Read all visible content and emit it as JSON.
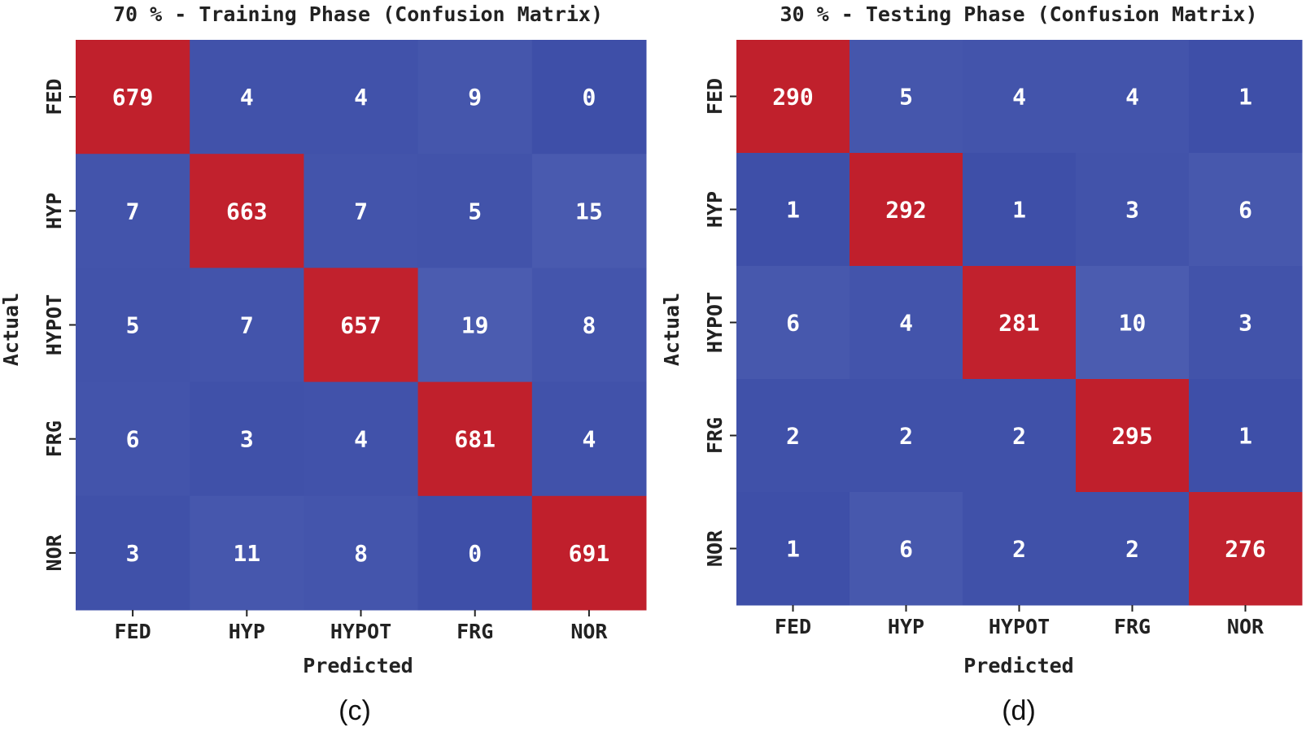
{
  "chart_data": [
    {
      "type": "heatmap",
      "title": "70 % - Training Phase (Confusion Matrix)",
      "xlabel": "Predicted",
      "ylabel": "Actual",
      "x_categories": [
        "FED",
        "HYP",
        "HYPOT",
        "FRG",
        "NOR"
      ],
      "y_categories": [
        "FED",
        "HYP",
        "HYPOT",
        "FRG",
        "NOR"
      ],
      "matrix": [
        [
          679,
          4,
          4,
          9,
          0
        ],
        [
          7,
          663,
          7,
          5,
          15
        ],
        [
          5,
          7,
          657,
          19,
          8
        ],
        [
          6,
          3,
          4,
          681,
          4
        ],
        [
          3,
          11,
          8,
          0,
          691
        ]
      ],
      "caption": "(c)",
      "colormap": [
        "#3e4fa8",
        "#c01f2c"
      ]
    },
    {
      "type": "heatmap",
      "title": "30 % - Testing Phase (Confusion Matrix)",
      "xlabel": "Predicted",
      "ylabel": "Actual",
      "x_categories": [
        "FED",
        "HYP",
        "HYPOT",
        "FRG",
        "NOR"
      ],
      "y_categories": [
        "FED",
        "HYP",
        "HYPOT",
        "FRG",
        "NOR"
      ],
      "matrix": [
        [
          290,
          5,
          4,
          4,
          1
        ],
        [
          1,
          292,
          1,
          3,
          6
        ],
        [
          6,
          4,
          281,
          10,
          3
        ],
        [
          2,
          2,
          2,
          295,
          1
        ],
        [
          1,
          6,
          2,
          2,
          276
        ]
      ],
      "caption": "(d)",
      "colormap": [
        "#3e4fa8",
        "#c01f2c"
      ]
    }
  ]
}
